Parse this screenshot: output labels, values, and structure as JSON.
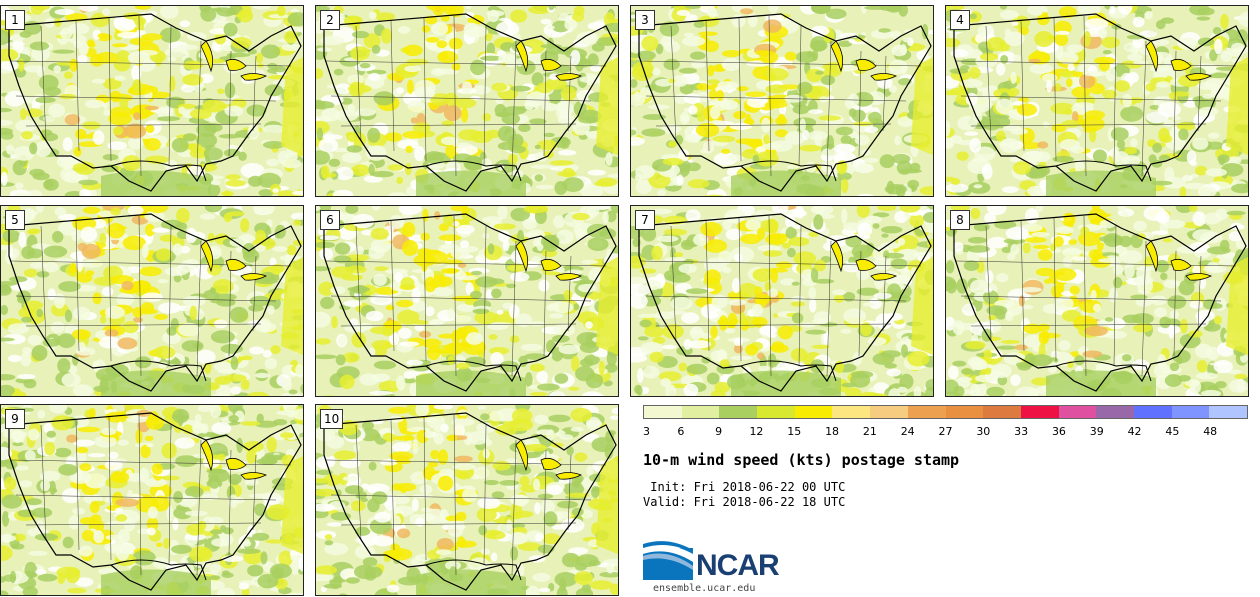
{
  "panels": [
    {
      "label": "1"
    },
    {
      "label": "2"
    },
    {
      "label": "3"
    },
    {
      "label": "4"
    },
    {
      "label": "5"
    },
    {
      "label": "6"
    },
    {
      "label": "7"
    },
    {
      "label": "8"
    },
    {
      "label": "9"
    },
    {
      "label": "10"
    }
  ],
  "colorbar": {
    "levels": [
      "3",
      "6",
      "9",
      "12",
      "15",
      "18",
      "21",
      "24",
      "27",
      "30",
      "33",
      "36",
      "39",
      "42",
      "45",
      "48"
    ],
    "colors": [
      "#f3f8d0",
      "#e0f0a0",
      "#a8cf60",
      "#d8e830",
      "#f8ec00",
      "#fbe680",
      "#f6cc80",
      "#eca050",
      "#e89040",
      "#dd7a40",
      "#ee1144",
      "#e050a0",
      "#9868a8",
      "#6070ff",
      "#7f94ff",
      "#b0c4ff"
    ]
  },
  "map_colors": {
    "background": "#e8f2b8",
    "light": "#f5fbe0",
    "green": "#a8cf60",
    "yellow": "#e6ee30",
    "bright": "#f8ec00",
    "orange": "#f0b860",
    "white": "#ffffff",
    "outline": "#000000",
    "borders": "#333333"
  },
  "title": "10-m wind speed (kts) postage stamp",
  "init": " Init: Fri 2018-06-22 00 UTC",
  "valid": "Valid: Fri 2018-06-22 18 UTC",
  "logo": {
    "text": "NCAR",
    "url": "ensemble.ucar.edu"
  }
}
